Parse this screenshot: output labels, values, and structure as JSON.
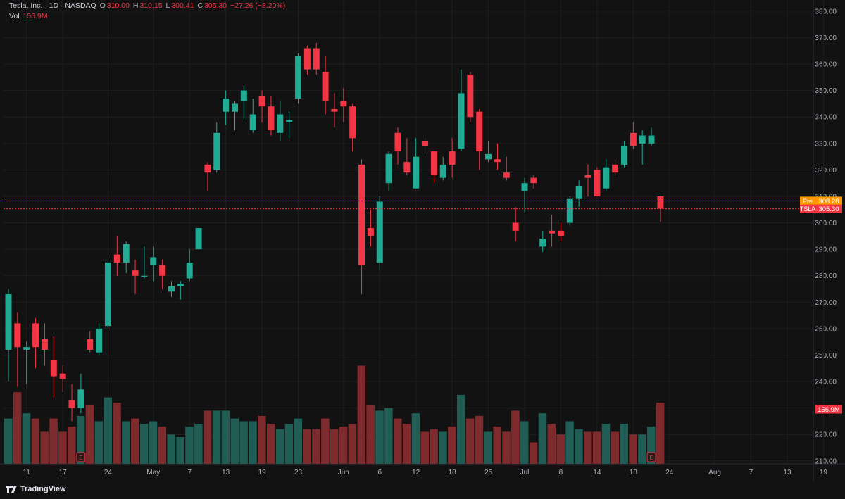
{
  "legend": {
    "symbol": "Tesla, Inc. · 1D · NASDAQ",
    "o_label": "O",
    "o_value": "310.00",
    "h_label": "H",
    "h_value": "310.15",
    "l_label": "L",
    "l_value": "300.41",
    "c_label": "C",
    "c_value": "305.30",
    "change": "−27.26 (−8.20%)",
    "vol_label": "Vol",
    "vol_value": "156.9M"
  },
  "branding": {
    "name": "TradingView"
  },
  "colors": {
    "up": "#22ab94",
    "down": "#f23645",
    "up_vol": "#1f5d55",
    "down_vol": "#7d2b2c",
    "pre": "#ff9800",
    "background": "#121212",
    "grid": "#1f1f1f"
  },
  "chart_data": {
    "type": "candlestick",
    "title": "Tesla, Inc. · 1D · NASDAQ",
    "ylim": [
      205,
      385
    ],
    "y_ticks": [
      "380.00",
      "370.00",
      "360.00",
      "350.00",
      "340.00",
      "330.00",
      "320.00",
      "310.00",
      "300.00",
      "290.00",
      "280.00",
      "270.00",
      "260.00",
      "250.00",
      "240.00",
      "230.00",
      "220.00",
      "210.00"
    ],
    "y_tick_values": [
      380,
      370,
      360,
      350,
      340,
      330,
      320,
      310,
      300,
      290,
      280,
      270,
      260,
      250,
      240,
      230,
      220,
      210
    ],
    "x_ticks": [
      "11",
      "17",
      "24",
      "May",
      "7",
      "13",
      "19",
      "23",
      "Jun",
      "6",
      "12",
      "18",
      "25",
      "Jul",
      "8",
      "14",
      "18",
      "24",
      "Aug",
      "7",
      "13",
      "19"
    ],
    "x_tick_index": [
      2,
      6,
      11,
      16,
      20,
      24,
      28,
      32,
      37,
      41,
      45,
      49,
      53,
      57,
      61,
      65,
      69,
      73,
      78,
      82,
      86,
      90
    ],
    "volume_label": "156.9M",
    "volume_label_value": 229.5,
    "price_lines": [
      {
        "label": "Pre",
        "value": 308.28,
        "text": "308.28",
        "color": "#ff9800"
      },
      {
        "label": "TSLA",
        "value": 305.3,
        "text": "305.30",
        "color": "#f23645"
      }
    ],
    "earnings_marks": [
      {
        "index": 8,
        "label": "E"
      },
      {
        "index": 71,
        "label": "E"
      }
    ],
    "series": [
      {
        "date": "Apr 9",
        "open": 252,
        "high": 275,
        "low": 240,
        "close": 273,
        "volume": 226
      },
      {
        "date": "Apr 10",
        "open": 262,
        "high": 266,
        "low": 238,
        "close": 253,
        "volume": 236
      },
      {
        "date": "Apr 11",
        "open": 252,
        "high": 255,
        "low": 239,
        "close": 253,
        "volume": 228
      },
      {
        "date": "Apr 14",
        "open": 262,
        "high": 264,
        "low": 245,
        "close": 253,
        "volume": 226
      },
      {
        "date": "Apr 15",
        "open": 256,
        "high": 262,
        "low": 246,
        "close": 252,
        "volume": 221
      },
      {
        "date": "Apr 16",
        "open": 248,
        "high": 257,
        "low": 234,
        "close": 242,
        "volume": 226
      },
      {
        "date": "Apr 17",
        "open": 243,
        "high": 246,
        "low": 236,
        "close": 241,
        "volume": 221
      },
      {
        "date": "Apr 21",
        "open": 233,
        "high": 239,
        "low": 225,
        "close": 230,
        "volume": 223
      },
      {
        "date": "Apr 22",
        "open": 230,
        "high": 243,
        "low": 228,
        "close": 237,
        "volume": 227
      },
      {
        "date": "Apr 23",
        "open": 256,
        "high": 259,
        "low": 251,
        "close": 252,
        "volume": 231
      },
      {
        "date": "Apr 24",
        "open": 251,
        "high": 262,
        "low": 250,
        "close": 260,
        "volume": 225
      },
      {
        "date": "Apr 25",
        "open": 261,
        "high": 287,
        "low": 260,
        "close": 285,
        "volume": 234
      },
      {
        "date": "Apr 28",
        "open": 288,
        "high": 295,
        "low": 280,
        "close": 285,
        "volume": 232
      },
      {
        "date": "Apr 29",
        "open": 285,
        "high": 293,
        "low": 281,
        "close": 292,
        "volume": 225
      },
      {
        "date": "Apr 30",
        "open": 282,
        "high": 286,
        "low": 273,
        "close": 280,
        "volume": 226
      },
      {
        "date": "May 1",
        "open": 280,
        "high": 291,
        "low": 279,
        "close": 280,
        "volume": 224
      },
      {
        "date": "May 2",
        "open": 284,
        "high": 291,
        "low": 278,
        "close": 287,
        "volume": 225
      },
      {
        "date": "May 5",
        "open": 284,
        "high": 286,
        "low": 275,
        "close": 280,
        "volume": 223
      },
      {
        "date": "May 6",
        "open": 274,
        "high": 278,
        "low": 272,
        "close": 276,
        "volume": 220
      },
      {
        "date": "May 7",
        "open": 276,
        "high": 278,
        "low": 271,
        "close": 277,
        "volume": 219
      },
      {
        "date": "May 8",
        "open": 279,
        "high": 290,
        "low": 278,
        "close": 285,
        "volume": 223
      },
      {
        "date": "May 9",
        "open": 290,
        "high": 298,
        "low": 290,
        "close": 298,
        "volume": 224
      },
      {
        "date": "May 12",
        "open": 322,
        "high": 323,
        "low": 312,
        "close": 319,
        "volume": 229
      },
      {
        "date": "May 13",
        "open": 320,
        "high": 338,
        "low": 319,
        "close": 334,
        "volume": 229
      },
      {
        "date": "May 14",
        "open": 342,
        "high": 350,
        "low": 337,
        "close": 347,
        "volume": 229
      },
      {
        "date": "May 15",
        "open": 342,
        "high": 346,
        "low": 335,
        "close": 345,
        "volume": 226
      },
      {
        "date": "May 16",
        "open": 346,
        "high": 352,
        "low": 339,
        "close": 350,
        "volume": 225
      },
      {
        "date": "May 19",
        "open": 335,
        "high": 347,
        "low": 334,
        "close": 341,
        "volume": 225
      },
      {
        "date": "May 20",
        "open": 348,
        "high": 350,
        "low": 338,
        "close": 344,
        "volume": 227
      },
      {
        "date": "May 21",
        "open": 344,
        "high": 348,
        "low": 333,
        "close": 335,
        "volume": 224
      },
      {
        "date": "May 22",
        "open": 334,
        "high": 346,
        "low": 331,
        "close": 341,
        "volume": 222
      },
      {
        "date": "May 23",
        "open": 338,
        "high": 342,
        "low": 332,
        "close": 339,
        "volume": 224
      },
      {
        "date": "May 27",
        "open": 347,
        "high": 364,
        "low": 345,
        "close": 363,
        "volume": 226
      },
      {
        "date": "May 28",
        "open": 366,
        "high": 367,
        "low": 356,
        "close": 358,
        "volume": 222
      },
      {
        "date": "May 29",
        "open": 366,
        "high": 368,
        "low": 356,
        "close": 358,
        "volume": 222
      },
      {
        "date": "May 30",
        "open": 357,
        "high": 363,
        "low": 341,
        "close": 346,
        "volume": 226
      },
      {
        "date": "Jun 2",
        "open": 343,
        "high": 349,
        "low": 336,
        "close": 342,
        "volume": 222
      },
      {
        "date": "Jun 3",
        "open": 346,
        "high": 351,
        "low": 338,
        "close": 344,
        "volume": 223
      },
      {
        "date": "Jun 4",
        "open": 344,
        "high": 345,
        "low": 327,
        "close": 332,
        "volume": 224
      },
      {
        "date": "Jun 5",
        "open": 322,
        "high": 324,
        "low": 273,
        "close": 284,
        "volume": 246
      },
      {
        "date": "Jun 6",
        "open": 298,
        "high": 305,
        "low": 291,
        "close": 295,
        "volume": 231
      },
      {
        "date": "Jun 9",
        "open": 285,
        "high": 310,
        "low": 282,
        "close": 308,
        "volume": 229
      },
      {
        "date": "Jun 10",
        "open": 315,
        "high": 327,
        "low": 312,
        "close": 326,
        "volume": 230
      },
      {
        "date": "Jun 11",
        "open": 334,
        "high": 336,
        "low": 322,
        "close": 327,
        "volume": 226
      },
      {
        "date": "Jun 12",
        "open": 323,
        "high": 332,
        "low": 318,
        "close": 319,
        "volume": 224
      },
      {
        "date": "Jun 13",
        "open": 313,
        "high": 332,
        "low": 313,
        "close": 325,
        "volume": 228
      },
      {
        "date": "Jun 16",
        "open": 331,
        "high": 332,
        "low": 326,
        "close": 329,
        "volume": 221
      },
      {
        "date": "Jun 17",
        "open": 327,
        "high": 327,
        "low": 315,
        "close": 318,
        "volume": 222
      },
      {
        "date": "Jun 18",
        "open": 317,
        "high": 325,
        "low": 316,
        "close": 322,
        "volume": 221
      },
      {
        "date": "Jun 20",
        "open": 327,
        "high": 332,
        "low": 317,
        "close": 322,
        "volume": 223
      },
      {
        "date": "Jun 23",
        "open": 328,
        "high": 358,
        "low": 327,
        "close": 349,
        "volume": 235
      },
      {
        "date": "Jun 24",
        "open": 356,
        "high": 357,
        "low": 338,
        "close": 340,
        "volume": 226
      },
      {
        "date": "Jun 25",
        "open": 342,
        "high": 343,
        "low": 320,
        "close": 327,
        "volume": 227
      },
      {
        "date": "Jun 26",
        "open": 324,
        "high": 331,
        "low": 323,
        "close": 326,
        "volume": 221
      },
      {
        "date": "Jun 27",
        "open": 324,
        "high": 330,
        "low": 320,
        "close": 323,
        "volume": 223
      },
      {
        "date": "Jun 30",
        "open": 319,
        "high": 325,
        "low": 316,
        "close": 317,
        "volume": 221
      },
      {
        "date": "Jul 1",
        "open": 300,
        "high": 306,
        "low": 293,
        "close": 297,
        "volume": 229
      },
      {
        "date": "Jul 2",
        "open": 312,
        "high": 317,
        "low": 304,
        "close": 315,
        "volume": 225
      },
      {
        "date": "Jul 3",
        "open": 317,
        "high": 318,
        "low": 313,
        "close": 315,
        "volume": 217
      },
      {
        "date": "Jul 7",
        "open": 291,
        "high": 297,
        "low": 289,
        "close": 294,
        "volume": 228
      },
      {
        "date": "Jul 8",
        "open": 297,
        "high": 303,
        "low": 291,
        "close": 296,
        "volume": 224
      },
      {
        "date": "Jul 9",
        "open": 297,
        "high": 300,
        "low": 293,
        "close": 295,
        "volume": 220
      },
      {
        "date": "Jul 10",
        "open": 300,
        "high": 310,
        "low": 299,
        "close": 309,
        "volume": 225
      },
      {
        "date": "Jul 11",
        "open": 309,
        "high": 316,
        "low": 306,
        "close": 314,
        "volume": 222
      },
      {
        "date": "Jul 14",
        "open": 318,
        "high": 322,
        "low": 310,
        "close": 317,
        "volume": 221
      },
      {
        "date": "Jul 15",
        "open": 320,
        "high": 321,
        "low": 310,
        "close": 310,
        "volume": 221
      },
      {
        "date": "Jul 16",
        "open": 313,
        "high": 324,
        "low": 312,
        "close": 321,
        "volume": 224
      },
      {
        "date": "Jul 17",
        "open": 322,
        "high": 324,
        "low": 318,
        "close": 319,
        "volume": 221
      },
      {
        "date": "Jul 18",
        "open": 322,
        "high": 331,
        "low": 321,
        "close": 329,
        "volume": 224
      },
      {
        "date": "Jul 21",
        "open": 334,
        "high": 338,
        "low": 328,
        "close": 329,
        "volume": 220
      },
      {
        "date": "Jul 22",
        "open": 330,
        "high": 335,
        "low": 322,
        "close": 333,
        "volume": 220
      },
      {
        "date": "Jul 23",
        "open": 330,
        "high": 336,
        "low": 329,
        "close": 333,
        "volume": 223
      },
      {
        "date": "Jul 24",
        "open": 310,
        "high": 310.15,
        "low": 300.41,
        "close": 305.3,
        "volume": 232
      }
    ]
  }
}
